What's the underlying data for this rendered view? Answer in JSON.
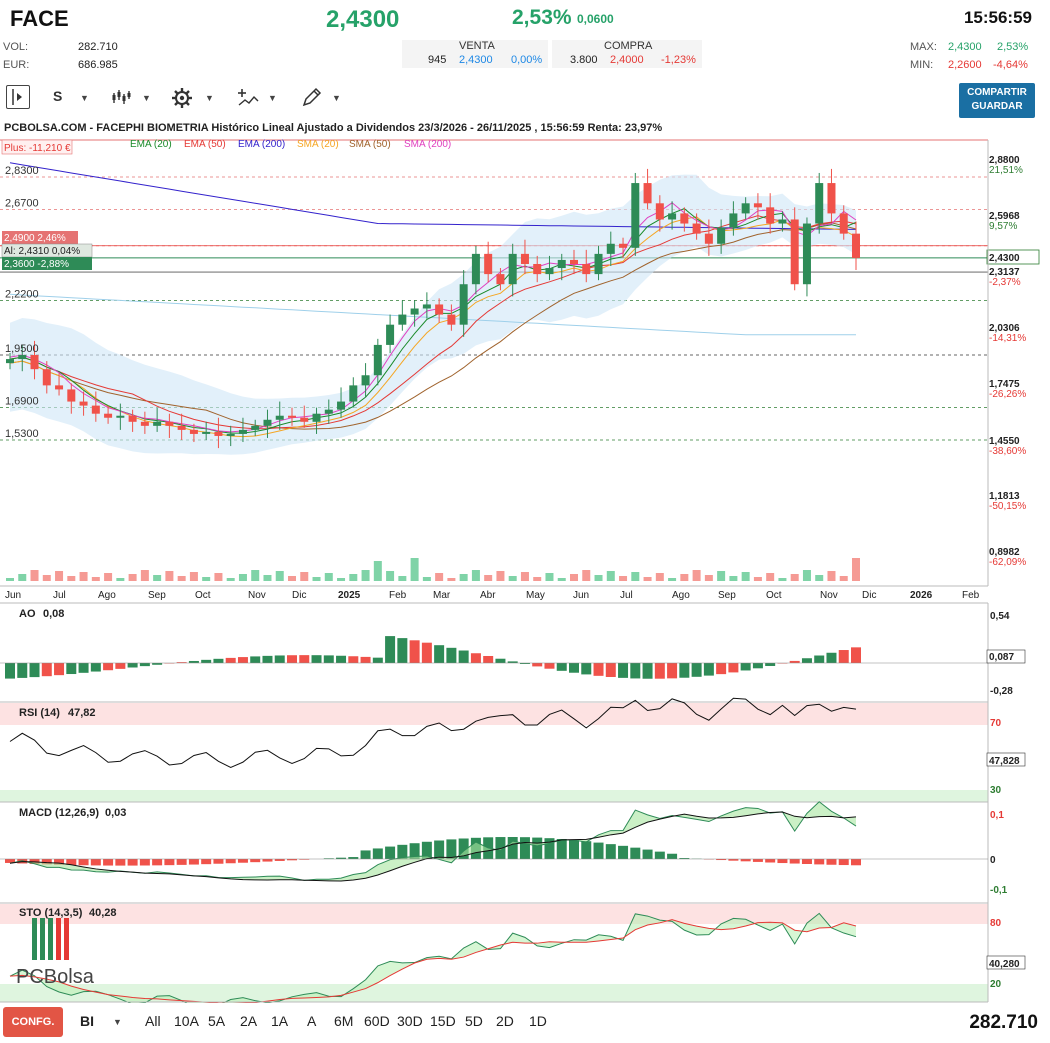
{
  "header": {
    "ticker": "FACE",
    "price": "2,4300",
    "change_pct": "2,53%",
    "change_abs": "0,0600",
    "time": "15:56:59",
    "vol_label": "VOL:",
    "vol_value": "282.710",
    "eur_label": "EUR:",
    "eur_value": "686.985",
    "venta_label": "VENTA",
    "venta_qty": "945",
    "venta_price": "2,4300",
    "venta_pct": "0,00%",
    "compra_label": "COMPRA",
    "compra_qty": "3.800",
    "compra_price": "2,4000",
    "compra_pct": "-1,23%",
    "max_label": "MAX:",
    "max_value": "2,4300",
    "max_pct": "2,53%",
    "min_label": "MIN:",
    "min_value": "2,2600",
    "min_pct": "-4,64%"
  },
  "toolbar": {
    "s_label": "S",
    "share_line1": "COMPARTIR",
    "share_line2": "GUARDAR"
  },
  "chart_info": {
    "title": "PCBOLSA.COM - FACEPHI BIOMETRIA Histórico Lineal Ajustado a Dividendos 23/3/2026 - 26/11/2025 , 15:56:59 Renta: 23,97%",
    "plus_label": "Plus: -11,210 €",
    "legend": [
      "EMA (20)",
      "EMA (50)",
      "EMA (200)",
      "SMA (20)",
      "SMA (50)",
      "SMA (200)"
    ],
    "legend_colors": [
      "#1a8a2a",
      "#e53935",
      "#3322cc",
      "#f5a623",
      "#a0632d",
      "#e040c0"
    ],
    "left_levels": [
      "2,8300",
      "2,6700",
      "2,2200",
      "1,9500",
      "1,6900",
      "1,5300"
    ],
    "right_levels": [
      "2,8800",
      "21,51%",
      "2,5968",
      "9,57%",
      "2,3137",
      "-2,37%",
      "2,0306",
      "-14,31%",
      "1,7475",
      "-26,26%",
      "1,4550",
      "-38,60%",
      "1,1813",
      "-50,15%",
      "0,8982",
      "-62,09%"
    ],
    "price_tag": "2,4300",
    "box_2490": "2,4900  2,46%",
    "box_al": "Al: 2,4310  0,04%",
    "box_2360": "2,3600  -2,88%",
    "months": [
      "Jun",
      "Jul",
      "Ago",
      "Sep",
      "Oct",
      "Nov",
      "Dic",
      "2025",
      "Feb",
      "Mar",
      "Abr",
      "May",
      "Jun",
      "Jul",
      "Ago",
      "Sep",
      "Oct",
      "Nov",
      "Dic",
      "2026",
      "Feb"
    ]
  },
  "indicators": {
    "ao_label": "AO",
    "ao_value": "0,08",
    "ao_ticks": [
      "0,54",
      "-0,28"
    ],
    "ao_tag": "0,087",
    "rsi_label": "RSI (14)",
    "rsi_value": "47,82",
    "rsi_ticks": [
      "70",
      "30"
    ],
    "rsi_tag": "47,828",
    "macd_label": "MACD (12,26,9)",
    "macd_value": "0,03",
    "macd_ticks": [
      "0,1",
      "0",
      "-0,1"
    ],
    "sto_label": "STO (14,3,5)",
    "sto_value": "40,28",
    "sto_ticks": [
      "80",
      "20"
    ],
    "sto_tag": "40,280",
    "logo_text": "PCBolsa"
  },
  "footer": {
    "config_label": "CONFG.",
    "bi_label": "BI",
    "periods": [
      "All",
      "10A",
      "5A",
      "2A",
      "1A",
      "A",
      "6M",
      "60D",
      "30D",
      "15D",
      "5D",
      "2D",
      "1D"
    ],
    "volume": "282.710"
  },
  "chart_data": {
    "type": "candlestick",
    "series_close": [
      1.93,
      1.95,
      1.88,
      1.8,
      1.78,
      1.72,
      1.7,
      1.66,
      1.64,
      1.65,
      1.62,
      1.6,
      1.62,
      1.6,
      1.58,
      1.56,
      1.57,
      1.55,
      1.56,
      1.58,
      1.6,
      1.63,
      1.65,
      1.64,
      1.62,
      1.66,
      1.68,
      1.72,
      1.8,
      1.85,
      2.0,
      2.1,
      2.15,
      2.18,
      2.2,
      2.15,
      2.1,
      2.3,
      2.45,
      2.35,
      2.3,
      2.45,
      2.4,
      2.35,
      2.38,
      2.42,
      2.4,
      2.35,
      2.45,
      2.5,
      2.48,
      2.8,
      2.7,
      2.62,
      2.65,
      2.6,
      2.55,
      2.5,
      2.58,
      2.65,
      2.7,
      2.68,
      2.6,
      2.62,
      2.3,
      2.6,
      2.8,
      2.65,
      2.55,
      2.43
    ]
  }
}
